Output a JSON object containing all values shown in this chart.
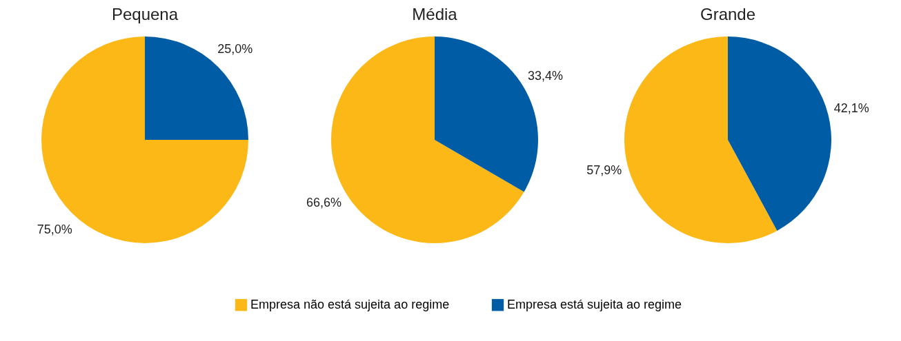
{
  "chart_data": [
    {
      "type": "pie",
      "title": "Pequena",
      "categories": [
        "Empresa não está sujeita ao regime",
        "Empresa está sujeita ao regime"
      ],
      "values": [
        75.0,
        25.0
      ],
      "value_labels": [
        "75,0%",
        "25,0%"
      ],
      "colors": [
        "#fbb817",
        "#005ca5"
      ],
      "legend": "bottom"
    },
    {
      "type": "pie",
      "title": "Média",
      "values": [
        66.6,
        33.4
      ],
      "value_labels": [
        "66,6%",
        "33,4%"
      ],
      "colors": [
        "#fbb817",
        "#005ca5"
      ]
    },
    {
      "type": "pie",
      "title": "Grande",
      "values": [
        57.9,
        42.1
      ],
      "value_labels": [
        "57,9%",
        "42,1%"
      ],
      "colors": [
        "#fbb817",
        "#005ca5"
      ]
    }
  ]
}
